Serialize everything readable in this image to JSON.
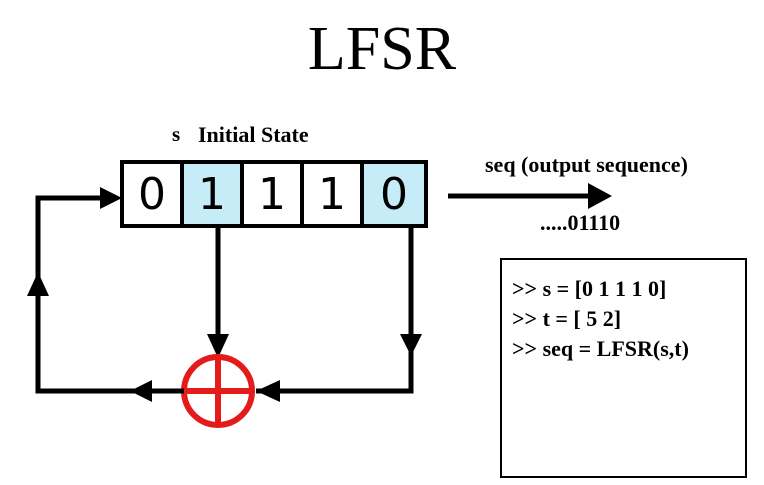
{
  "title": "LFSR",
  "state_label_symbol": "s",
  "state_label_text": "Initial State",
  "output_label": "seq (output sequence)",
  "output_value": ".....01110",
  "cells": [
    {
      "bit": "0",
      "tap": false
    },
    {
      "bit": "1",
      "tap": true
    },
    {
      "bit": "1",
      "tap": false
    },
    {
      "bit": "1",
      "tap": false
    },
    {
      "bit": "0",
      "tap": true
    }
  ],
  "code_lines": [
    ">> s = [0 1 1 1 0]",
    ">> t = [ 5 2]",
    ">> seq = LFSR(s,t)"
  ],
  "colors": {
    "tap_fill": "#c6ecf8",
    "xor": "#e31b1b",
    "line": "#000000"
  }
}
